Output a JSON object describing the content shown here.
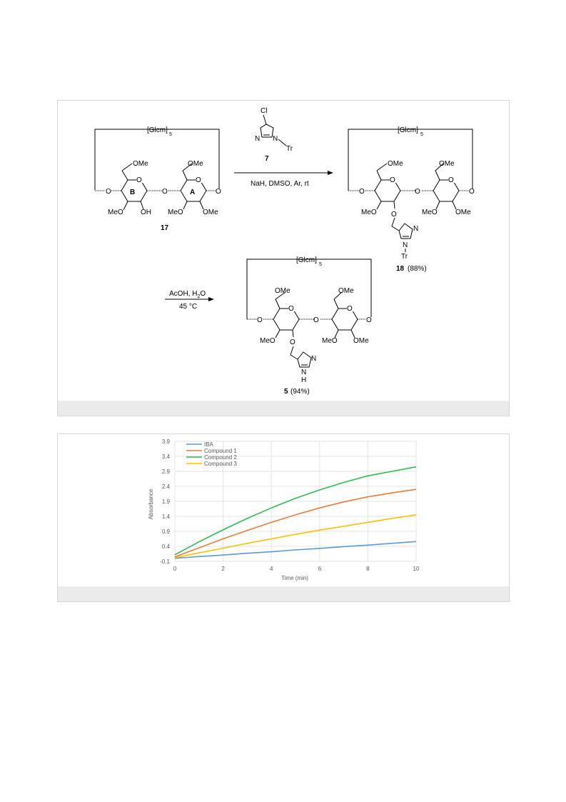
{
  "scheme": {
    "ring_label": "[Glcm]",
    "ring_subscript": "5",
    "ome": "OMe",
    "meo": "MeO",
    "oh": "OH",
    "o": "O",
    "n": "N",
    "h": "H",
    "cl": "Cl",
    "tr": "Tr",
    "ring_b": "B",
    "ring_a": "A",
    "cmpd_17": "17",
    "cmpd_7": "7",
    "cmpd_18": "18",
    "cmpd_18_yield": "(88%)",
    "cmpd_5": "5",
    "cmpd_5_yield": "(94%)",
    "step1_conditions": "NaH, DMSO, Ar, rt",
    "step2_line1_a": "AcOH, H",
    "step2_line1_sub": "2",
    "step2_line1_b": "O",
    "step2_line2": "45 °C"
  },
  "chart_data": {
    "type": "line",
    "xlabel": "Time (min)",
    "ylabel": "Absorbance",
    "xlim": [
      0,
      10
    ],
    "ylim": [
      -0.1,
      3.9
    ],
    "xticks": [
      0,
      2,
      4,
      6,
      8,
      10
    ],
    "yticks": [
      -0.1,
      0.4,
      0.9,
      1.4,
      1.9,
      2.4,
      2.9,
      3.4,
      3.9
    ],
    "grid": true,
    "legend": "top-left",
    "series": [
      {
        "name": "IBA",
        "color": "#5b9bd5",
        "x": [
          0,
          1,
          2,
          3,
          4,
          5,
          6,
          7,
          8,
          9,
          10
        ],
        "y": [
          0.0,
          0.06,
          0.11,
          0.17,
          0.22,
          0.28,
          0.33,
          0.39,
          0.44,
          0.5,
          0.56
        ]
      },
      {
        "name": "Compound 1",
        "color": "#ed7d31",
        "x": [
          0,
          1,
          2,
          3,
          4,
          5,
          6,
          7,
          8,
          9,
          10
        ],
        "y": [
          0.05,
          0.35,
          0.65,
          0.93,
          1.2,
          1.45,
          1.68,
          1.88,
          2.05,
          2.18,
          2.3
        ]
      },
      {
        "name": "Compound 2",
        "color": "#2ebc4f",
        "x": [
          0,
          1,
          2,
          3,
          4,
          5,
          6,
          7,
          8,
          9,
          10
        ],
        "y": [
          0.12,
          0.55,
          0.95,
          1.33,
          1.68,
          2.0,
          2.28,
          2.53,
          2.75,
          2.9,
          3.05
        ]
      },
      {
        "name": "Compound 3",
        "color": "#ffc000",
        "x": [
          0,
          1,
          2,
          3,
          4,
          5,
          6,
          7,
          8,
          9,
          10
        ],
        "y": [
          0.02,
          0.18,
          0.34,
          0.5,
          0.65,
          0.8,
          0.94,
          1.07,
          1.2,
          1.33,
          1.45
        ]
      }
    ]
  }
}
